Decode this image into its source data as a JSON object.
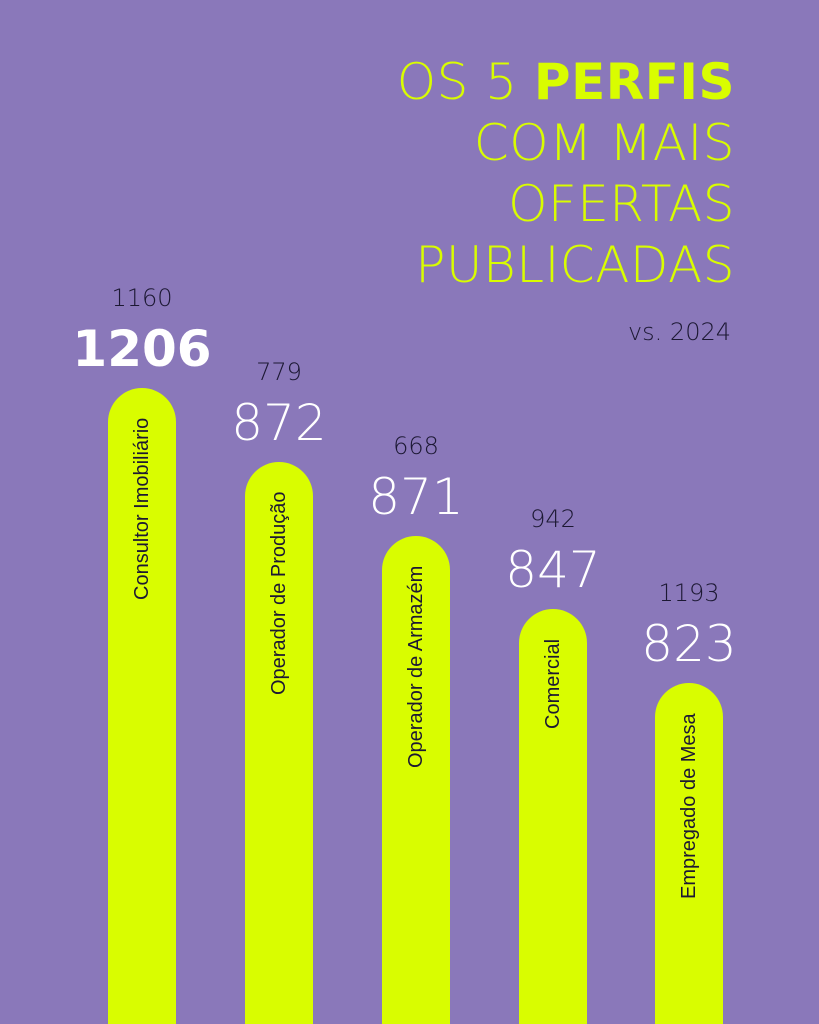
{
  "header": {
    "title_part1": "OS 5 ",
    "title_bold": "PERFIS",
    "title_line2": "COM MAIS",
    "title_line3": "OFERTAS",
    "title_line4": "PUBLICADAS",
    "subtitle": "vs. 2024"
  },
  "colors": {
    "background": "#8a78ba",
    "accent": "#d9fd00",
    "dark_text": "#1c1833",
    "value_text": "#ffffff"
  },
  "chart_data": {
    "type": "bar",
    "categories": [
      "Consultor Imobiliário",
      "Operador de Produção",
      "Operador de Armazém",
      "Comercial",
      "Empregado de Mesa"
    ],
    "series": [
      {
        "values": [
          1206,
          872,
          871,
          847,
          823
        ]
      },
      {
        "values": [
          1160,
          779,
          668,
          942,
          1193
        ]
      }
    ],
    "current_labels": [
      "1206",
      "872",
      "871",
      "847",
      "823"
    ],
    "previous_labels": [
      "1160",
      "779",
      "668",
      "942",
      "1193"
    ]
  }
}
